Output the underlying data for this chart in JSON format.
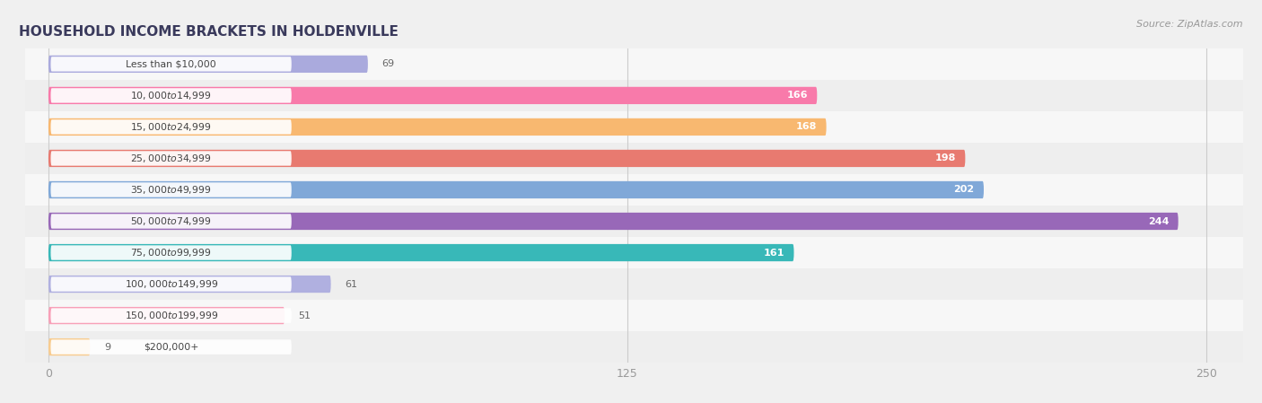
{
  "title": "HOUSEHOLD INCOME BRACKETS IN HOLDENVILLE",
  "source": "Source: ZipAtlas.com",
  "categories": [
    "Less than $10,000",
    "$10,000 to $14,999",
    "$15,000 to $24,999",
    "$25,000 to $34,999",
    "$35,000 to $49,999",
    "$50,000 to $74,999",
    "$75,000 to $99,999",
    "$100,000 to $149,999",
    "$150,000 to $199,999",
    "$200,000+"
  ],
  "values": [
    69,
    166,
    168,
    198,
    202,
    244,
    161,
    61,
    51,
    9
  ],
  "bar_colors": [
    "#aaaadd",
    "#f87aaa",
    "#f8b870",
    "#e87a70",
    "#80a8d8",
    "#9868b8",
    "#38b8b8",
    "#b0b0e0",
    "#f8a0b8",
    "#f8cc90"
  ],
  "row_bg_colors": [
    "#f0f0f0",
    "#e8e8e8"
  ],
  "xlim": [
    -5,
    258
  ],
  "xticks": [
    0,
    125,
    250
  ],
  "background_color": "#f0f0f0",
  "bar_row_light": "#f7f7f7",
  "bar_row_dark": "#eeeeee",
  "label_inside_color": "#ffffff",
  "label_outside_color": "#666666",
  "label_inside_threshold": 100,
  "pill_bg": "#ffffff",
  "pill_text_color": "#444444",
  "title_color": "#3a3a5c",
  "source_color": "#999999"
}
